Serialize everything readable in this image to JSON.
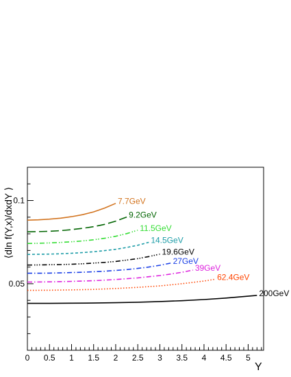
{
  "chart_data": {
    "type": "line",
    "title": "",
    "xlabel": "Y",
    "ylabel": "⟨dln f(Y,x)/dxdY ⟩",
    "xlim": [
      0,
      5.35
    ],
    "ylim": [
      0.01,
      0.12
    ],
    "x_ticks": [
      0,
      0.5,
      1,
      1.5,
      2,
      2.5,
      3,
      3.5,
      4,
      4.5,
      5
    ],
    "x_tick_labels": [
      "0",
      "0.5",
      "1",
      "1.5",
      "2",
      "2.5",
      "3",
      "3.5",
      "4",
      "4.5",
      "5"
    ],
    "y_tick_labels": [
      {
        "value": 0.05,
        "label": "0.05"
      },
      {
        "value": 0.1,
        "label": "0.1"
      }
    ],
    "grid": false,
    "legend": "none",
    "series": [
      {
        "name": "7.7GeV",
        "color": "#d2731e",
        "dash": "solid",
        "x": [
          0,
          0.25,
          0.5,
          0.75,
          1,
          1.25,
          1.5,
          1.75,
          2.0
        ],
        "y": [
          0.0882,
          0.0884,
          0.0888,
          0.0894,
          0.0903,
          0.0915,
          0.0932,
          0.0955,
          0.0983
        ]
      },
      {
        "name": "9.2GeV",
        "color": "#006400",
        "dash": "long-dash",
        "x": [
          0,
          0.25,
          0.5,
          0.75,
          1,
          1.25,
          1.5,
          1.75,
          2.0,
          2.25
        ],
        "y": [
          0.0812,
          0.0813,
          0.0815,
          0.0819,
          0.0825,
          0.0833,
          0.0843,
          0.0857,
          0.0876,
          0.0901
        ]
      },
      {
        "name": "11.5GeV",
        "color": "#33dd33",
        "dash": "dash-dot-dot",
        "x": [
          0,
          0.25,
          0.5,
          0.75,
          1,
          1.25,
          1.5,
          1.75,
          2.0,
          2.25,
          2.5
        ],
        "y": [
          0.0742,
          0.0743,
          0.0745,
          0.0748,
          0.0752,
          0.0757,
          0.0764,
          0.0773,
          0.0785,
          0.0801,
          0.0822
        ]
      },
      {
        "name": "14.5GeV",
        "color": "#1a9ba6",
        "dash": "short-dash",
        "x": [
          0,
          0.25,
          0.5,
          0.75,
          1,
          1.25,
          1.5,
          1.75,
          2.0,
          2.25,
          2.5,
          2.75
        ],
        "y": [
          0.0676,
          0.0677,
          0.0678,
          0.068,
          0.0683,
          0.0687,
          0.0692,
          0.0699,
          0.0707,
          0.0718,
          0.0731,
          0.0749
        ]
      },
      {
        "name": "19.6GeV",
        "color": "#000000",
        "dash": "dash-dot-dot-dot",
        "x": [
          0,
          0.25,
          0.5,
          0.75,
          1,
          1.25,
          1.5,
          1.75,
          2.0,
          2.25,
          2.5,
          2.75,
          3.0
        ],
        "y": [
          0.0612,
          0.0613,
          0.0614,
          0.0615,
          0.0617,
          0.062,
          0.0624,
          0.0628,
          0.0634,
          0.0642,
          0.0651,
          0.0663,
          0.0678
        ]
      },
      {
        "name": "27GeV",
        "color": "#1a3fe6",
        "dash": "dash-dot",
        "x": [
          0,
          0.25,
          0.5,
          0.75,
          1,
          1.25,
          1.5,
          1.75,
          2.0,
          2.25,
          2.5,
          2.75,
          3.0,
          3.25
        ],
        "y": [
          0.0563,
          0.0563,
          0.0564,
          0.0565,
          0.0567,
          0.0569,
          0.0572,
          0.0575,
          0.058,
          0.0585,
          0.0592,
          0.06,
          0.0611,
          0.0624
        ]
      },
      {
        "name": "39GeV",
        "color": "#dd22dd",
        "dash": "dash-dot",
        "x": [
          0,
          0.5,
          1,
          1.5,
          2,
          2.5,
          3,
          3.25,
          3.5,
          3.75
        ],
        "y": [
          0.051,
          0.0511,
          0.0514,
          0.0518,
          0.0525,
          0.0535,
          0.0549,
          0.0558,
          0.0569,
          0.0582
        ]
      },
      {
        "name": "62.4GeV",
        "color": "#ff4400",
        "dash": "dotted",
        "x": [
          0,
          0.5,
          1,
          1.5,
          2,
          2.5,
          3,
          3.5,
          4.0,
          4.25
        ],
        "y": [
          0.046,
          0.0461,
          0.0463,
          0.0466,
          0.0471,
          0.0478,
          0.0487,
          0.05,
          0.0516,
          0.0527
        ]
      },
      {
        "name": "200GeV",
        "color": "#000000",
        "dash": "solid",
        "x": [
          0,
          0.5,
          1,
          1.5,
          2,
          2.5,
          3,
          3.5,
          4,
          4.5,
          5.0,
          5.2
        ],
        "y": [
          0.0382,
          0.0382,
          0.0383,
          0.0384,
          0.0386,
          0.0389,
          0.0393,
          0.0398,
          0.0405,
          0.0414,
          0.0425,
          0.043
        ]
      }
    ]
  }
}
